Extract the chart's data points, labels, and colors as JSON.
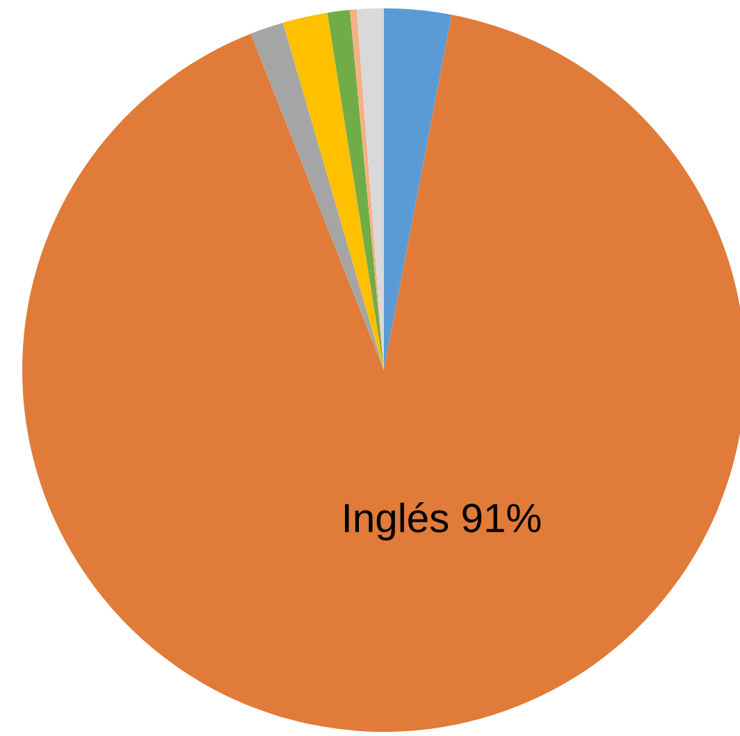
{
  "chart_data": {
    "type": "pie",
    "categories": [
      null,
      "Inglés",
      null,
      null,
      null,
      null,
      null
    ],
    "values": [
      3,
      91,
      1.5,
      2,
      1,
      0.3,
      1.2
    ],
    "colors": [
      "#5b9bd5",
      "#e07b39",
      "#a5a5a5",
      "#ffc000",
      "#70ad47",
      "#f4b183",
      "#d9d9d9"
    ],
    "value_labels": [
      null,
      "91%",
      null,
      null,
      null,
      null,
      null
    ],
    "legend": false
  }
}
